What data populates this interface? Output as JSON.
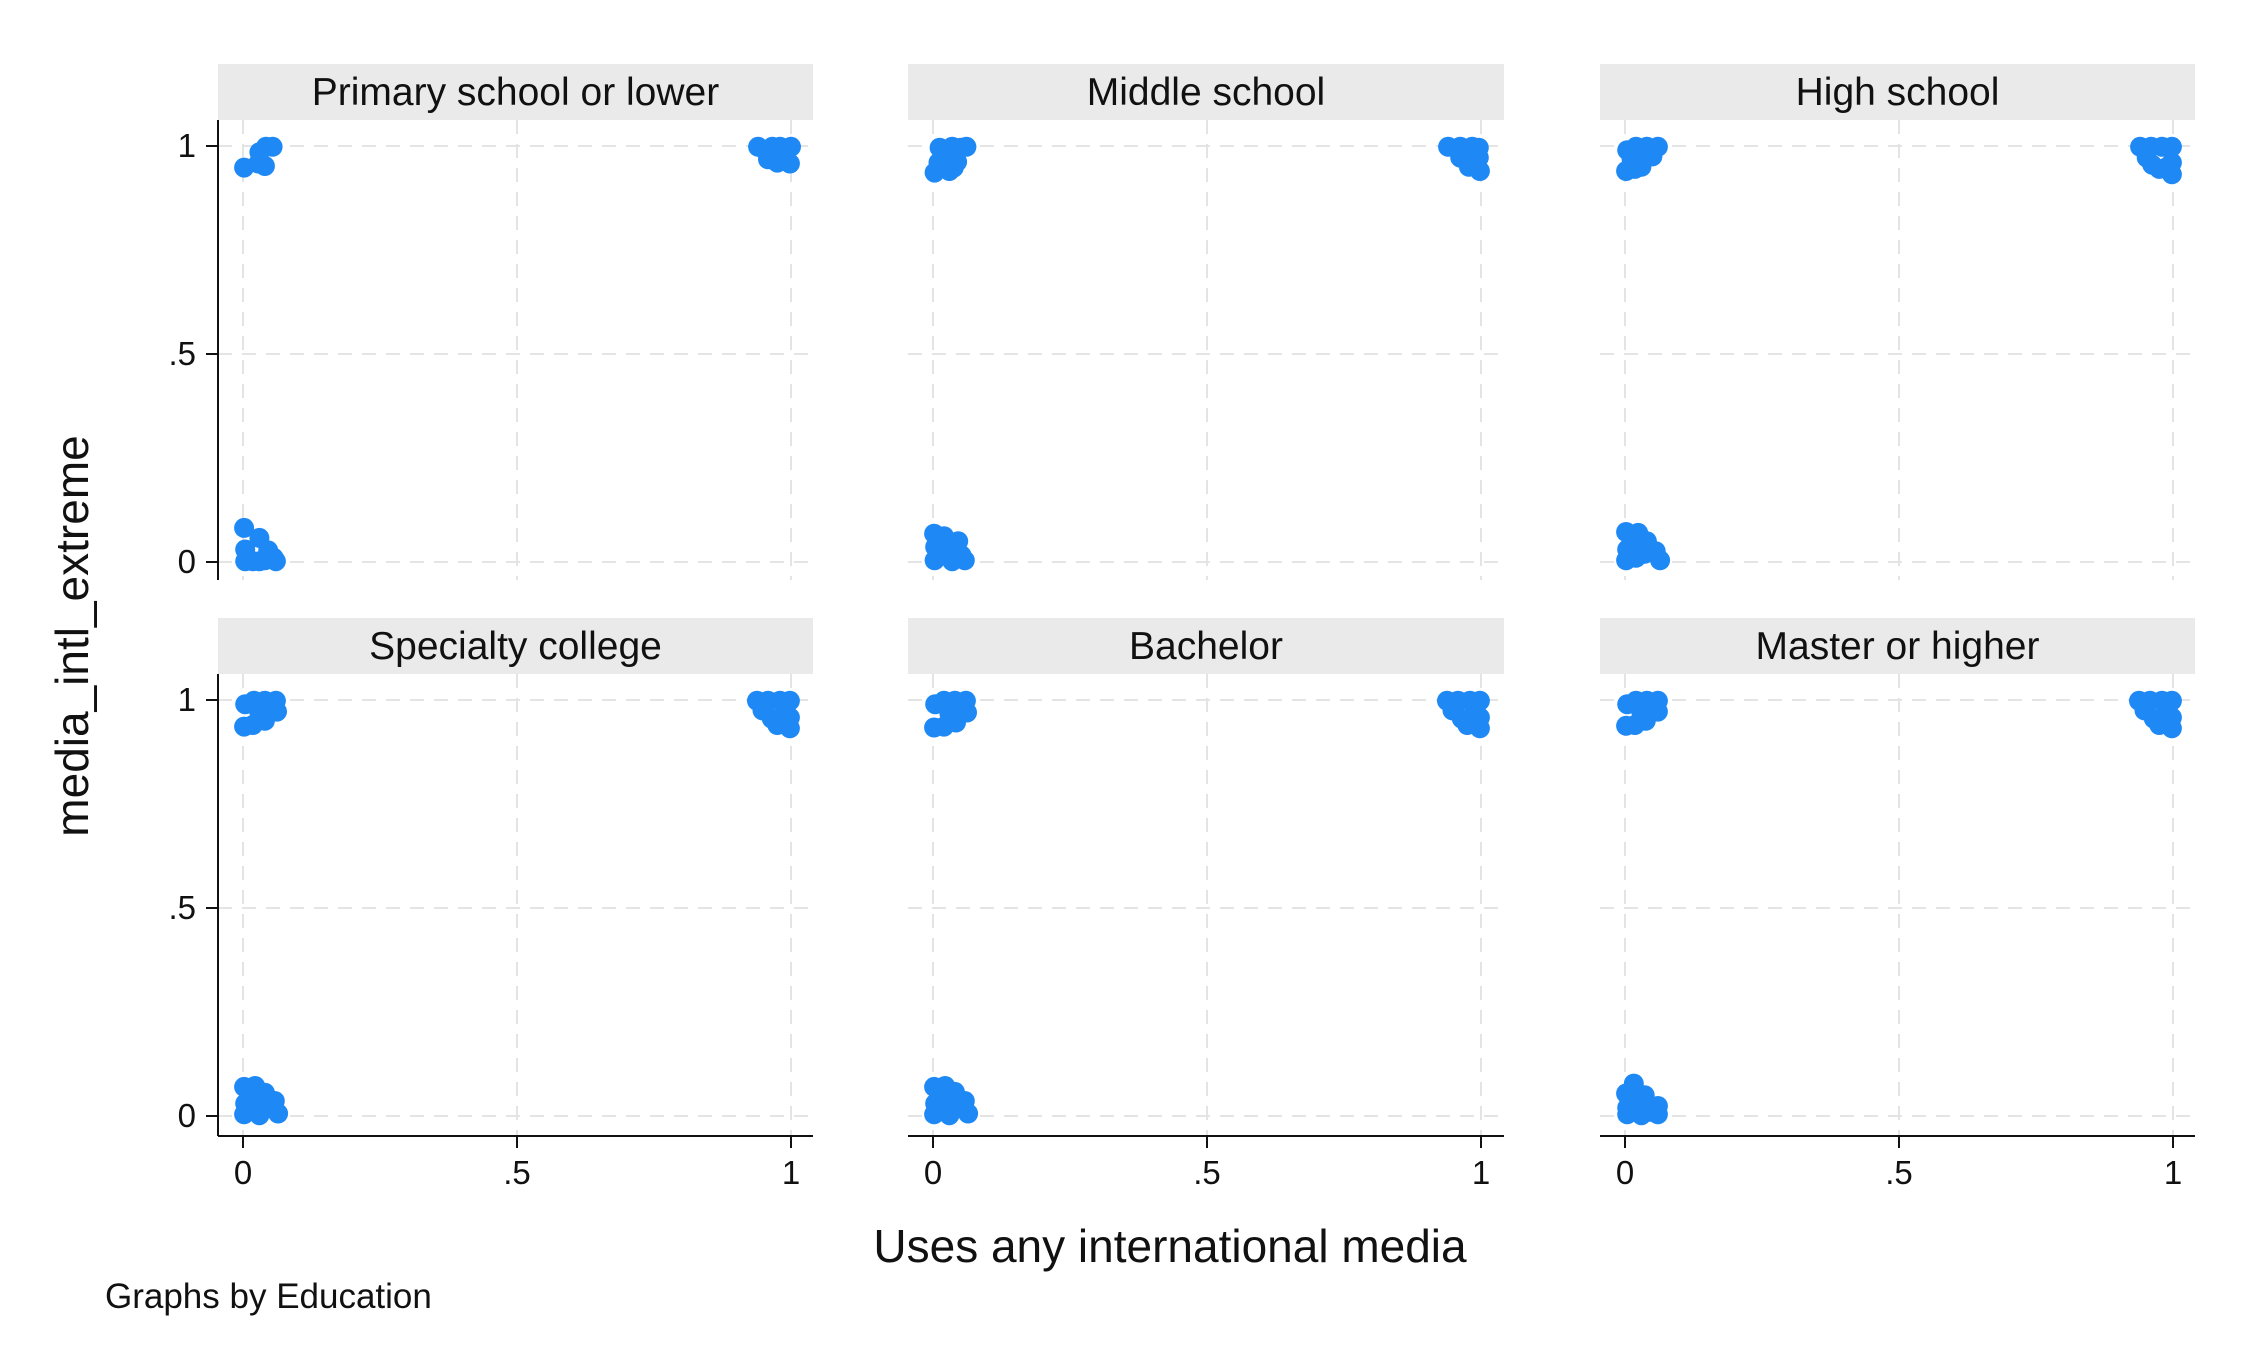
{
  "chart_data": {
    "type": "scatter",
    "facet_by": "Education",
    "xlabel": "Uses any international media",
    "ylabel": "media_intl_extreme",
    "note": "Graphs by Education",
    "xlim": [
      0,
      1
    ],
    "ylim": [
      0,
      1
    ],
    "x_ticks": [
      {
        "value": 0,
        "label": "0"
      },
      {
        "value": 0.5,
        "label": ".5"
      },
      {
        "value": 1,
        "label": "1"
      }
    ],
    "y_ticks": [
      {
        "value": 0,
        "label": "0"
      },
      {
        "value": 0.5,
        "label": ".5"
      },
      {
        "value": 1,
        "label": "1"
      }
    ],
    "grid": true,
    "marker_color": "#1e88f5",
    "jitter": 0.07,
    "panels": [
      {
        "title": "Primary school or lower",
        "points": [
          [
            0.002,
            0.948
          ],
          [
            0.028,
            0.958
          ],
          [
            0.04,
            0.952
          ],
          [
            0.03,
            0.985
          ],
          [
            0.042,
            0.998
          ],
          [
            0.054,
            0.998
          ],
          [
            0.002,
            0.082
          ],
          [
            0.004,
            0.03
          ],
          [
            0.004,
            0.002
          ],
          [
            0.03,
            0.058
          ],
          [
            0.03,
            0.002
          ],
          [
            0.046,
            0.028
          ],
          [
            0.056,
            0.01
          ],
          [
            0.018,
            0.002
          ],
          [
            0.04,
            0.004
          ],
          [
            0.06,
            0.002
          ],
          [
            0.94,
            0.998
          ],
          [
            0.954,
            0.988
          ],
          [
            0.966,
            0.998
          ],
          [
            0.98,
            0.998
          ],
          [
            0.958,
            0.968
          ],
          [
            0.975,
            0.96
          ],
          [
            1.0,
            0.998
          ],
          [
            0.998,
            0.958
          ]
        ]
      },
      {
        "title": "Middle school",
        "points": [
          [
            0.003,
            0.936
          ],
          [
            0.01,
            0.96
          ],
          [
            0.02,
            0.992
          ],
          [
            0.035,
            0.998
          ],
          [
            0.05,
            0.996
          ],
          [
            0.061,
            0.998
          ],
          [
            0.03,
            0.94
          ],
          [
            0.044,
            0.962
          ],
          [
            0.012,
            0.996
          ],
          [
            0.026,
            0.97
          ],
          [
            0.038,
            0.948
          ],
          [
            0.002,
            0.068
          ],
          [
            0.004,
            0.036
          ],
          [
            0.003,
            0.004
          ],
          [
            0.02,
            0.062
          ],
          [
            0.03,
            0.04
          ],
          [
            0.04,
            0.03
          ],
          [
            0.052,
            0.016
          ],
          [
            0.058,
            0.004
          ],
          [
            0.018,
            0.02
          ],
          [
            0.035,
            0.002
          ],
          [
            0.046,
            0.05
          ],
          [
            0.94,
            0.998
          ],
          [
            0.962,
            0.998
          ],
          [
            0.984,
            0.998
          ],
          [
            0.996,
            0.996
          ],
          [
            0.996,
            0.972
          ],
          [
            0.998,
            0.94
          ],
          [
            0.962,
            0.972
          ],
          [
            0.978,
            0.95
          ],
          [
            0.986,
            0.968
          ]
        ]
      },
      {
        "title": "High school",
        "points": [
          [
            0.002,
            0.94
          ],
          [
            0.004,
            0.99
          ],
          [
            0.02,
            0.998
          ],
          [
            0.04,
            0.998
          ],
          [
            0.06,
            0.998
          ],
          [
            0.05,
            0.975
          ],
          [
            0.03,
            0.95
          ],
          [
            0.012,
            0.968
          ],
          [
            0.036,
            0.972
          ],
          [
            0.018,
            0.945
          ],
          [
            0.002,
            0.072
          ],
          [
            0.004,
            0.03
          ],
          [
            0.002,
            0.004
          ],
          [
            0.024,
            0.07
          ],
          [
            0.04,
            0.05
          ],
          [
            0.056,
            0.026
          ],
          [
            0.064,
            0.004
          ],
          [
            0.02,
            0.01
          ],
          [
            0.036,
            0.02
          ],
          [
            0.012,
            0.04
          ],
          [
            0.94,
            0.998
          ],
          [
            0.96,
            0.998
          ],
          [
            0.98,
            0.998
          ],
          [
            0.998,
            0.998
          ],
          [
            0.998,
            0.96
          ],
          [
            0.998,
            0.932
          ],
          [
            0.975,
            0.945
          ],
          [
            0.952,
            0.972
          ],
          [
            0.99,
            0.95
          ],
          [
            0.962,
            0.955
          ]
        ]
      },
      {
        "title": "Specialty college",
        "points": [
          [
            0.002,
            0.936
          ],
          [
            0.004,
            0.99
          ],
          [
            0.02,
            0.998
          ],
          [
            0.04,
            0.998
          ],
          [
            0.06,
            0.998
          ],
          [
            0.062,
            0.972
          ],
          [
            0.04,
            0.95
          ],
          [
            0.018,
            0.94
          ],
          [
            0.03,
            0.97
          ],
          [
            0.05,
            0.985
          ],
          [
            0.002,
            0.07
          ],
          [
            0.004,
            0.03
          ],
          [
            0.002,
            0.004
          ],
          [
            0.022,
            0.072
          ],
          [
            0.04,
            0.056
          ],
          [
            0.058,
            0.036
          ],
          [
            0.064,
            0.006
          ],
          [
            0.03,
            0.002
          ],
          [
            0.014,
            0.04
          ],
          [
            0.046,
            0.02
          ],
          [
            0.938,
            0.998
          ],
          [
            0.958,
            0.998
          ],
          [
            0.98,
            0.998
          ],
          [
            0.998,
            0.998
          ],
          [
            0.998,
            0.958
          ],
          [
            0.998,
            0.932
          ],
          [
            0.975,
            0.94
          ],
          [
            0.948,
            0.975
          ],
          [
            0.965,
            0.955
          ],
          [
            0.988,
            0.965
          ]
        ]
      },
      {
        "title": "Bachelor",
        "points": [
          [
            0.002,
            0.934
          ],
          [
            0.004,
            0.99
          ],
          [
            0.02,
            0.998
          ],
          [
            0.04,
            0.998
          ],
          [
            0.06,
            0.998
          ],
          [
            0.062,
            0.97
          ],
          [
            0.042,
            0.946
          ],
          [
            0.02,
            0.936
          ],
          [
            0.03,
            0.968
          ],
          [
            0.052,
            0.984
          ],
          [
            0.002,
            0.07
          ],
          [
            0.004,
            0.03
          ],
          [
            0.002,
            0.004
          ],
          [
            0.022,
            0.072
          ],
          [
            0.04,
            0.058
          ],
          [
            0.058,
            0.036
          ],
          [
            0.064,
            0.006
          ],
          [
            0.03,
            0.002
          ],
          [
            0.014,
            0.04
          ],
          [
            0.046,
            0.02
          ],
          [
            0.938,
            0.998
          ],
          [
            0.958,
            0.998
          ],
          [
            0.98,
            0.998
          ],
          [
            0.998,
            0.998
          ],
          [
            0.998,
            0.958
          ],
          [
            0.998,
            0.932
          ],
          [
            0.975,
            0.94
          ],
          [
            0.948,
            0.975
          ],
          [
            0.965,
            0.955
          ],
          [
            0.988,
            0.965
          ]
        ]
      },
      {
        "title": "Master or higher",
        "points": [
          [
            0.002,
            0.938
          ],
          [
            0.004,
            0.99
          ],
          [
            0.02,
            0.998
          ],
          [
            0.04,
            0.998
          ],
          [
            0.06,
            0.998
          ],
          [
            0.06,
            0.972
          ],
          [
            0.038,
            0.95
          ],
          [
            0.018,
            0.94
          ],
          [
            0.03,
            0.97
          ],
          [
            0.048,
            0.985
          ],
          [
            0.002,
            0.054
          ],
          [
            0.004,
            0.02
          ],
          [
            0.004,
            0.004
          ],
          [
            0.016,
            0.078
          ],
          [
            0.02,
            0.04
          ],
          [
            0.036,
            0.05
          ],
          [
            0.046,
            0.01
          ],
          [
            0.06,
            0.024
          ],
          [
            0.06,
            0.004
          ],
          [
            0.03,
            0.002
          ],
          [
            0.012,
            0.03
          ],
          [
            0.938,
            0.998
          ],
          [
            0.958,
            0.998
          ],
          [
            0.98,
            0.998
          ],
          [
            0.998,
            0.998
          ],
          [
            0.998,
            0.958
          ],
          [
            0.998,
            0.932
          ],
          [
            0.975,
            0.94
          ],
          [
            0.948,
            0.975
          ],
          [
            0.965,
            0.955
          ],
          [
            0.988,
            0.965
          ]
        ]
      }
    ]
  }
}
